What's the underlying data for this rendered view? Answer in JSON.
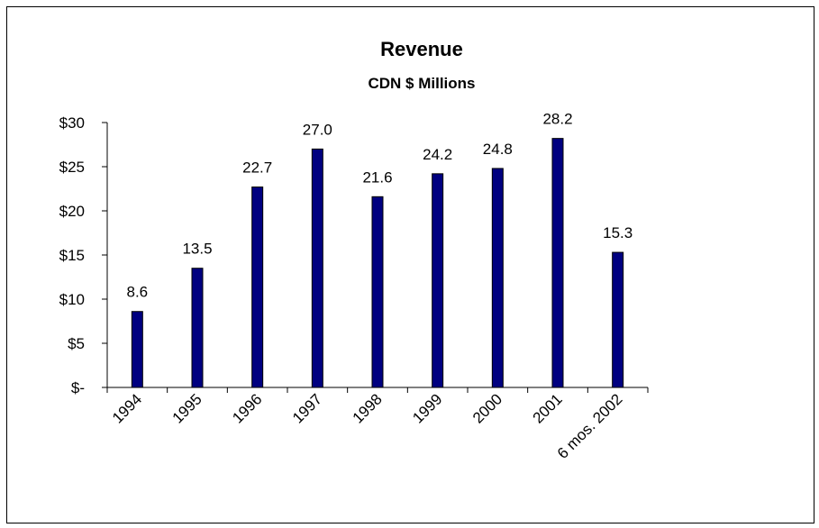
{
  "chart_data": {
    "type": "bar",
    "title": "Revenue",
    "subtitle": "CDN $ Millions",
    "categories": [
      "1994",
      "1995",
      "1996",
      "1997",
      "1998",
      "1999",
      "2000",
      "2001",
      "6 mos. 2002"
    ],
    "values": [
      8.6,
      13.5,
      22.7,
      27.0,
      21.6,
      24.2,
      24.8,
      28.2,
      15.3
    ],
    "data_labels": [
      "8.6",
      "13.5",
      "22.7",
      "27.0",
      "21.6",
      "24.2",
      "24.8",
      "28.2",
      "15.3"
    ],
    "ylim": [
      0,
      30
    ],
    "yticks": [
      0,
      5,
      10,
      15,
      20,
      25,
      30
    ],
    "ytick_labels": [
      "$-",
      "$5",
      "$10",
      "$15",
      "$20",
      "$25",
      "$30"
    ],
    "grid": false,
    "bar_color": "#000080"
  }
}
